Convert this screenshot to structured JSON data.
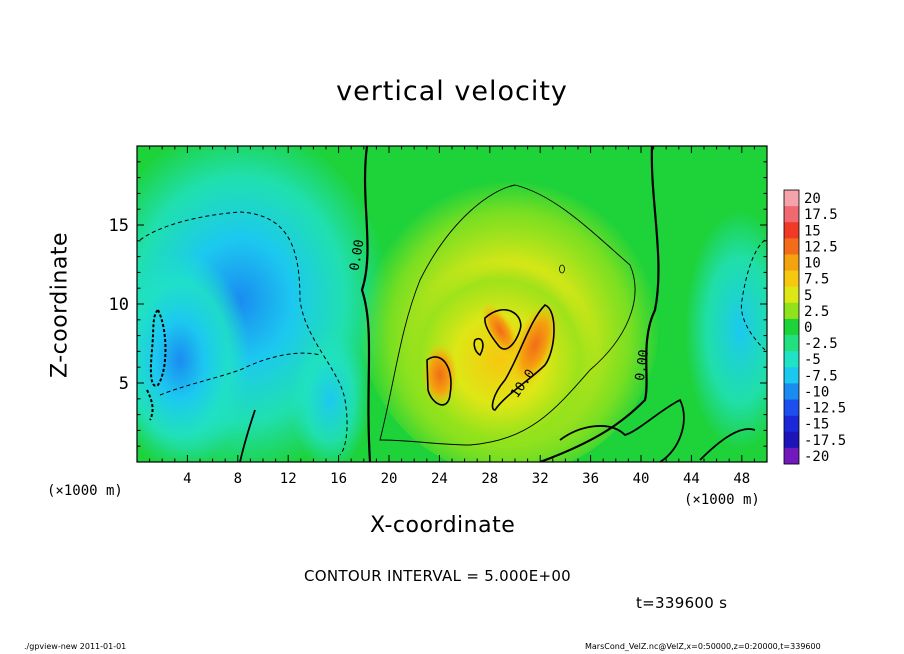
{
  "chart_data": {
    "type": "heatmap",
    "title": "vertical velocity",
    "xlabel": "X-coordinate",
    "ylabel": "Z-coordinate",
    "x_unit_label": "(×1000 m)",
    "xlim": [
      0,
      50
    ],
    "ylim": [
      0,
      20
    ],
    "x_ticks": [
      4,
      8,
      12,
      16,
      20,
      24,
      28,
      32,
      36,
      40,
      44,
      48
    ],
    "y_ticks": [
      5,
      10,
      15
    ],
    "colorbar": {
      "levels": [
        "20",
        "17.5",
        "15",
        "12.5",
        "10",
        "7.5",
        "5",
        "2.5",
        "0",
        "-2.5",
        "-5",
        "-7.5",
        "-10",
        "-12.5",
        "-15",
        "-17.5",
        "-20"
      ],
      "colors": [
        "#f5a3ab",
        "#f06870",
        "#ef3a25",
        "#f26c19",
        "#f4a20d",
        "#f6c80f",
        "#dde716",
        "#8fe21c",
        "#1ed23a",
        "#21e07f",
        "#20e2c4",
        "#1cc8f0",
        "#1a8cf1",
        "#1b4ff0",
        "#1a28d8",
        "#1d14b9",
        "#7219bd"
      ]
    },
    "contour_labels": [
      "0.00",
      "10.0",
      "0.00"
    ],
    "contour_interval": "CONTOUR INTERVAL = 5.000E+00",
    "time_label": "t=339600 s"
  },
  "footer": {
    "left": "./gpview-new   2011-01-01",
    "right": "MarsCond_VelZ.nc@VelZ,x=0:50000,z=0:20000,t=339600"
  }
}
